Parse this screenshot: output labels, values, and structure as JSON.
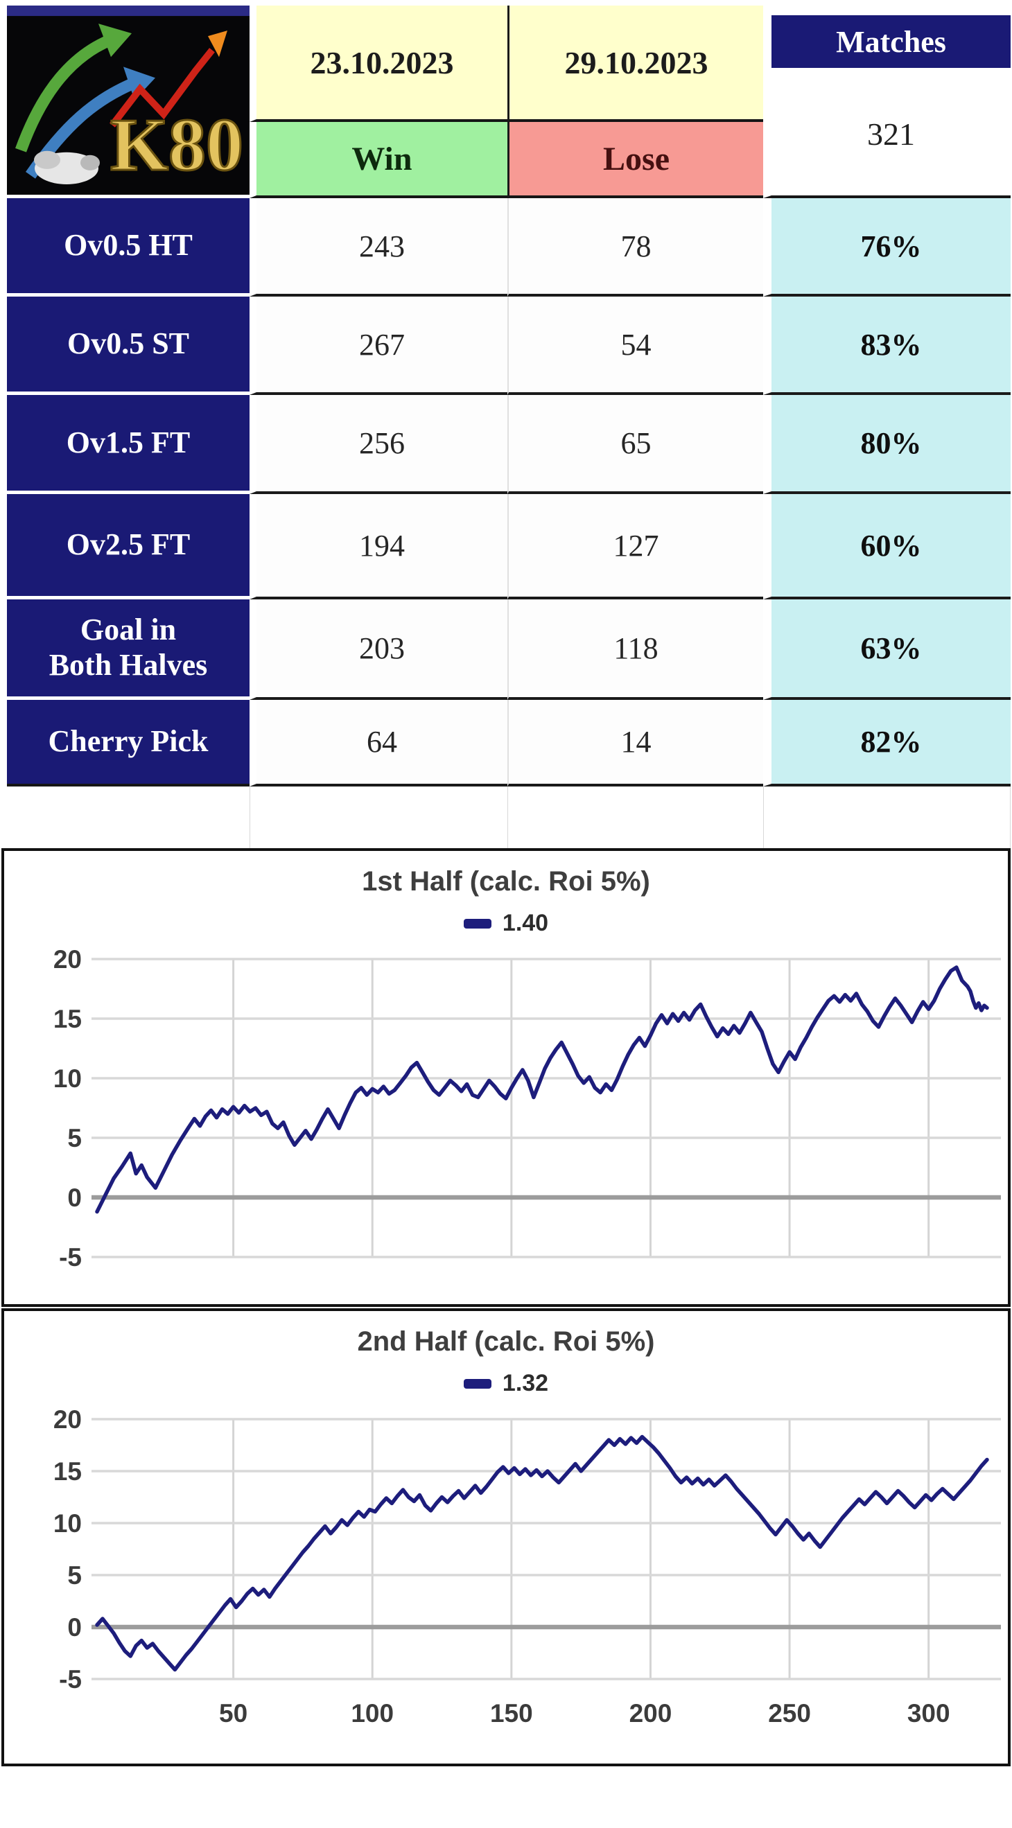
{
  "header": {
    "logo_text": "K80",
    "date_from": "23.10.2023",
    "date_to": "29.10.2023",
    "matches_label": "Matches",
    "matches_count": "321",
    "win_label": "Win",
    "lose_label": "Lose"
  },
  "colors": {
    "navy": "#1a1a75",
    "header_yellow": "#ffffcc",
    "win_green": "#a0f0a0",
    "lose_red": "#f79a94",
    "pct_cyan": "#c9f0f2",
    "line_navy": "#1d1d7c"
  },
  "table": {
    "rows": [
      {
        "label": "Ov0.5 HT",
        "label_lines": [
          "Ov0.5 HT"
        ],
        "win": "243",
        "lose": "78",
        "pct": "76%"
      },
      {
        "label": "Ov0.5 ST",
        "label_lines": [
          "Ov0.5 ST"
        ],
        "win": "267",
        "lose": "54",
        "pct": "83%"
      },
      {
        "label": "Ov1.5 FT",
        "label_lines": [
          "Ov1.5 FT"
        ],
        "win": "256",
        "lose": "65",
        "pct": "80%"
      },
      {
        "label": "Ov2.5 FT",
        "label_lines": [
          "Ov2.5 FT"
        ],
        "win": "194",
        "lose": "127",
        "pct": "60%"
      },
      {
        "label": "Goal in Both Halves",
        "label_lines": [
          "Goal in",
          "Both Halves"
        ],
        "win": "203",
        "lose": "118",
        "pct": "63%"
      },
      {
        "label": "Cherry Pick",
        "label_lines": [
          "Cherry Pick"
        ],
        "win": "64",
        "lose": "14",
        "pct": "82%"
      }
    ]
  },
  "chart_data": [
    {
      "type": "line",
      "title": "1st Half (calc. Roi 5%)",
      "legend_label": "1.40",
      "line_color": "#1d1d7c",
      "xlim": [
        0,
        325
      ],
      "ylim": [
        -5,
        20
      ],
      "y_ticks": [
        20,
        15,
        10,
        5,
        0,
        -5
      ],
      "x_ticks": [
        50,
        100,
        150,
        200,
        250,
        300
      ],
      "show_x_labels": false,
      "grid": true,
      "legend_position": "top",
      "points": [
        [
          1,
          -1.2
        ],
        [
          4,
          0.2
        ],
        [
          7,
          1.6
        ],
        [
          10,
          2.6
        ],
        [
          13,
          3.7
        ],
        [
          15,
          2.0
        ],
        [
          17,
          2.7
        ],
        [
          19,
          1.7
        ],
        [
          22,
          0.8
        ],
        [
          25,
          2.2
        ],
        [
          28,
          3.6
        ],
        [
          31,
          4.8
        ],
        [
          34,
          5.9
        ],
        [
          36,
          6.6
        ],
        [
          38,
          6.0
        ],
        [
          40,
          6.8
        ],
        [
          42,
          7.3
        ],
        [
          44,
          6.7
        ],
        [
          46,
          7.4
        ],
        [
          48,
          7.0
        ],
        [
          50,
          7.6
        ],
        [
          52,
          7.1
        ],
        [
          54,
          7.7
        ],
        [
          56,
          7.2
        ],
        [
          58,
          7.5
        ],
        [
          60,
          6.9
        ],
        [
          62,
          7.2
        ],
        [
          64,
          6.2
        ],
        [
          66,
          5.8
        ],
        [
          68,
          6.3
        ],
        [
          70,
          5.2
        ],
        [
          72,
          4.4
        ],
        [
          74,
          5.0
        ],
        [
          76,
          5.6
        ],
        [
          78,
          4.9
        ],
        [
          80,
          5.7
        ],
        [
          82,
          6.6
        ],
        [
          84,
          7.4
        ],
        [
          86,
          6.6
        ],
        [
          88,
          5.8
        ],
        [
          90,
          6.9
        ],
        [
          92,
          7.9
        ],
        [
          94,
          8.8
        ],
        [
          96,
          9.2
        ],
        [
          98,
          8.6
        ],
        [
          100,
          9.1
        ],
        [
          102,
          8.8
        ],
        [
          104,
          9.3
        ],
        [
          106,
          8.7
        ],
        [
          108,
          9.0
        ],
        [
          110,
          9.6
        ],
        [
          112,
          10.2
        ],
        [
          114,
          10.9
        ],
        [
          116,
          11.3
        ],
        [
          118,
          10.5
        ],
        [
          120,
          9.7
        ],
        [
          122,
          9.0
        ],
        [
          124,
          8.6
        ],
        [
          126,
          9.2
        ],
        [
          128,
          9.8
        ],
        [
          130,
          9.4
        ],
        [
          132,
          8.9
        ],
        [
          134,
          9.5
        ],
        [
          136,
          8.6
        ],
        [
          138,
          8.4
        ],
        [
          140,
          9.1
        ],
        [
          142,
          9.8
        ],
        [
          144,
          9.3
        ],
        [
          146,
          8.7
        ],
        [
          148,
          8.3
        ],
        [
          150,
          9.2
        ],
        [
          152,
          10.0
        ],
        [
          154,
          10.7
        ],
        [
          156,
          9.8
        ],
        [
          158,
          8.4
        ],
        [
          160,
          9.6
        ],
        [
          162,
          10.8
        ],
        [
          164,
          11.7
        ],
        [
          166,
          12.4
        ],
        [
          168,
          13.0
        ],
        [
          170,
          12.1
        ],
        [
          172,
          11.2
        ],
        [
          174,
          10.2
        ],
        [
          176,
          9.6
        ],
        [
          178,
          10.1
        ],
        [
          180,
          9.2
        ],
        [
          182,
          8.8
        ],
        [
          184,
          9.5
        ],
        [
          186,
          9.0
        ],
        [
          188,
          9.9
        ],
        [
          190,
          11.0
        ],
        [
          192,
          12.0
        ],
        [
          194,
          12.8
        ],
        [
          196,
          13.4
        ],
        [
          198,
          12.7
        ],
        [
          200,
          13.6
        ],
        [
          202,
          14.6
        ],
        [
          204,
          15.3
        ],
        [
          206,
          14.6
        ],
        [
          208,
          15.4
        ],
        [
          210,
          14.8
        ],
        [
          212,
          15.5
        ],
        [
          214,
          14.9
        ],
        [
          216,
          15.7
        ],
        [
          218,
          16.2
        ],
        [
          220,
          15.2
        ],
        [
          222,
          14.3
        ],
        [
          224,
          13.5
        ],
        [
          226,
          14.2
        ],
        [
          228,
          13.7
        ],
        [
          230,
          14.4
        ],
        [
          232,
          13.8
        ],
        [
          234,
          14.6
        ],
        [
          236,
          15.5
        ],
        [
          238,
          14.7
        ],
        [
          240,
          13.9
        ],
        [
          242,
          12.5
        ],
        [
          244,
          11.2
        ],
        [
          246,
          10.5
        ],
        [
          248,
          11.4
        ],
        [
          250,
          12.2
        ],
        [
          252,
          11.6
        ],
        [
          254,
          12.6
        ],
        [
          256,
          13.4
        ],
        [
          258,
          14.3
        ],
        [
          260,
          15.1
        ],
        [
          262,
          15.8
        ],
        [
          264,
          16.5
        ],
        [
          266,
          16.9
        ],
        [
          268,
          16.4
        ],
        [
          270,
          17.0
        ],
        [
          272,
          16.5
        ],
        [
          274,
          17.1
        ],
        [
          276,
          16.2
        ],
        [
          278,
          15.6
        ],
        [
          280,
          14.8
        ],
        [
          282,
          14.3
        ],
        [
          284,
          15.2
        ],
        [
          286,
          16.0
        ],
        [
          288,
          16.7
        ],
        [
          290,
          16.1
        ],
        [
          292,
          15.4
        ],
        [
          294,
          14.7
        ],
        [
          296,
          15.6
        ],
        [
          298,
          16.4
        ],
        [
          300,
          15.8
        ],
        [
          302,
          16.5
        ],
        [
          304,
          17.5
        ],
        [
          306,
          18.3
        ],
        [
          308,
          19.0
        ],
        [
          310,
          19.3
        ],
        [
          312,
          18.2
        ],
        [
          314,
          17.7
        ],
        [
          315,
          17.3
        ],
        [
          316,
          16.5
        ],
        [
          317,
          15.9
        ],
        [
          318,
          16.3
        ],
        [
          319,
          15.7
        ],
        [
          320,
          16.1
        ],
        [
          321,
          15.9
        ]
      ]
    },
    {
      "type": "line",
      "title": "2nd Half (calc. Roi 5%)",
      "legend_label": "1.32",
      "line_color": "#1d1d7c",
      "xlim": [
        0,
        325
      ],
      "ylim": [
        -5,
        20
      ],
      "y_ticks": [
        20,
        15,
        10,
        5,
        0,
        -5
      ],
      "x_ticks": [
        50,
        100,
        150,
        200,
        250,
        300
      ],
      "show_x_labels": true,
      "grid": true,
      "legend_position": "top",
      "points": [
        [
          1,
          0.2
        ],
        [
          3,
          0.8
        ],
        [
          5,
          0.1
        ],
        [
          7,
          -0.6
        ],
        [
          9,
          -1.5
        ],
        [
          11,
          -2.3
        ],
        [
          13,
          -2.8
        ],
        [
          15,
          -1.8
        ],
        [
          17,
          -1.3
        ],
        [
          19,
          -2.0
        ],
        [
          21,
          -1.6
        ],
        [
          23,
          -2.3
        ],
        [
          25,
          -2.9
        ],
        [
          27,
          -3.5
        ],
        [
          29,
          -4.1
        ],
        [
          31,
          -3.4
        ],
        [
          33,
          -2.7
        ],
        [
          35,
          -2.1
        ],
        [
          37,
          -1.4
        ],
        [
          39,
          -0.7
        ],
        [
          41,
          0.0
        ],
        [
          43,
          0.7
        ],
        [
          45,
          1.4
        ],
        [
          47,
          2.1
        ],
        [
          49,
          2.7
        ],
        [
          51,
          1.9
        ],
        [
          53,
          2.5
        ],
        [
          55,
          3.2
        ],
        [
          57,
          3.7
        ],
        [
          59,
          3.1
        ],
        [
          61,
          3.6
        ],
        [
          63,
          2.9
        ],
        [
          65,
          3.7
        ],
        [
          67,
          4.4
        ],
        [
          69,
          5.1
        ],
        [
          71,
          5.8
        ],
        [
          73,
          6.5
        ],
        [
          75,
          7.2
        ],
        [
          77,
          7.8
        ],
        [
          79,
          8.5
        ],
        [
          81,
          9.1
        ],
        [
          83,
          9.7
        ],
        [
          85,
          9.0
        ],
        [
          87,
          9.6
        ],
        [
          89,
          10.3
        ],
        [
          91,
          9.8
        ],
        [
          93,
          10.5
        ],
        [
          95,
          11.1
        ],
        [
          97,
          10.6
        ],
        [
          99,
          11.3
        ],
        [
          101,
          11.1
        ],
        [
          103,
          11.8
        ],
        [
          105,
          12.4
        ],
        [
          107,
          11.9
        ],
        [
          109,
          12.6
        ],
        [
          111,
          13.2
        ],
        [
          113,
          12.5
        ],
        [
          115,
          12.1
        ],
        [
          117,
          12.7
        ],
        [
          119,
          11.7
        ],
        [
          121,
          11.2
        ],
        [
          123,
          11.9
        ],
        [
          125,
          12.5
        ],
        [
          127,
          12.0
        ],
        [
          129,
          12.6
        ],
        [
          131,
          13.1
        ],
        [
          133,
          12.4
        ],
        [
          135,
          13.0
        ],
        [
          137,
          13.6
        ],
        [
          139,
          12.9
        ],
        [
          141,
          13.5
        ],
        [
          143,
          14.2
        ],
        [
          145,
          14.9
        ],
        [
          147,
          15.4
        ],
        [
          149,
          14.8
        ],
        [
          151,
          15.3
        ],
        [
          153,
          14.7
        ],
        [
          155,
          15.2
        ],
        [
          157,
          14.6
        ],
        [
          159,
          15.1
        ],
        [
          161,
          14.5
        ],
        [
          163,
          15.0
        ],
        [
          165,
          14.4
        ],
        [
          167,
          13.9
        ],
        [
          169,
          14.5
        ],
        [
          171,
          15.1
        ],
        [
          173,
          15.7
        ],
        [
          175,
          15.0
        ],
        [
          177,
          15.6
        ],
        [
          179,
          16.2
        ],
        [
          181,
          16.8
        ],
        [
          183,
          17.4
        ],
        [
          185,
          18.0
        ],
        [
          187,
          17.5
        ],
        [
          189,
          18.1
        ],
        [
          191,
          17.6
        ],
        [
          193,
          18.2
        ],
        [
          195,
          17.7
        ],
        [
          197,
          18.3
        ],
        [
          199,
          17.8
        ],
        [
          201,
          17.3
        ],
        [
          203,
          16.7
        ],
        [
          205,
          16.0
        ],
        [
          207,
          15.3
        ],
        [
          209,
          14.5
        ],
        [
          211,
          13.9
        ],
        [
          213,
          14.4
        ],
        [
          215,
          13.8
        ],
        [
          217,
          14.3
        ],
        [
          219,
          13.7
        ],
        [
          221,
          14.2
        ],
        [
          223,
          13.6
        ],
        [
          225,
          14.1
        ],
        [
          227,
          14.6
        ],
        [
          229,
          14.0
        ],
        [
          231,
          13.3
        ],
        [
          233,
          12.7
        ],
        [
          235,
          12.1
        ],
        [
          237,
          11.5
        ],
        [
          239,
          10.9
        ],
        [
          241,
          10.2
        ],
        [
          243,
          9.5
        ],
        [
          245,
          8.9
        ],
        [
          247,
          9.6
        ],
        [
          249,
          10.3
        ],
        [
          251,
          9.7
        ],
        [
          253,
          9.0
        ],
        [
          255,
          8.4
        ],
        [
          257,
          9.0
        ],
        [
          259,
          8.3
        ],
        [
          261,
          7.7
        ],
        [
          263,
          8.4
        ],
        [
          265,
          9.1
        ],
        [
          267,
          9.8
        ],
        [
          269,
          10.5
        ],
        [
          271,
          11.1
        ],
        [
          273,
          11.7
        ],
        [
          275,
          12.3
        ],
        [
          277,
          11.8
        ],
        [
          279,
          12.4
        ],
        [
          281,
          13.0
        ],
        [
          283,
          12.5
        ],
        [
          285,
          11.9
        ],
        [
          287,
          12.5
        ],
        [
          289,
          13.1
        ],
        [
          291,
          12.6
        ],
        [
          293,
          12.0
        ],
        [
          295,
          11.5
        ],
        [
          297,
          12.1
        ],
        [
          299,
          12.7
        ],
        [
          301,
          12.2
        ],
        [
          303,
          12.8
        ],
        [
          305,
          13.3
        ],
        [
          307,
          12.8
        ],
        [
          309,
          12.3
        ],
        [
          311,
          12.9
        ],
        [
          313,
          13.5
        ],
        [
          315,
          14.1
        ],
        [
          317,
          14.8
        ],
        [
          319,
          15.5
        ],
        [
          321,
          16.1
        ]
      ]
    }
  ]
}
